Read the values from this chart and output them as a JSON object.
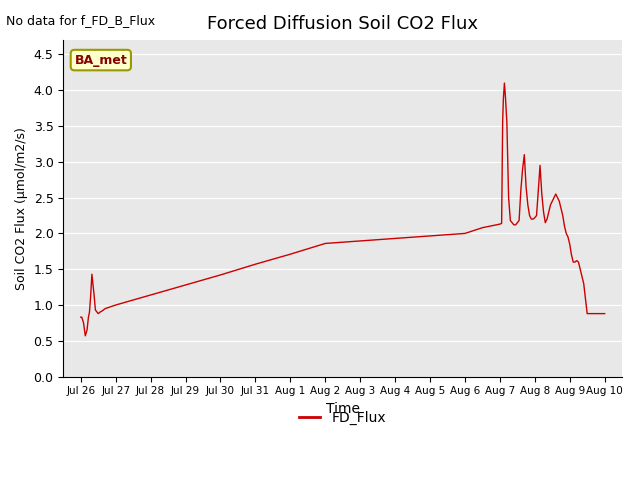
{
  "title": "Forced Diffusion Soil CO2 Flux",
  "top_left_text": "No data for f_FD_B_Flux",
  "xlabel": "Time",
  "ylabel": "Soil CO2 Flux (μmol/m2/s)",
  "ylim": [
    0.0,
    4.7
  ],
  "yticks": [
    0.0,
    0.5,
    1.0,
    1.5,
    2.0,
    2.5,
    3.0,
    3.5,
    4.0,
    4.5
  ],
  "line_color": "#cc0000",
  "line_label": "FD_Flux",
  "legend_anchor_label": "BA_met",
  "background_color": "#e8e8e8",
  "xtick_labels": [
    "Jul 26",
    "Jul 27",
    "Jul 28",
    "Jul 29",
    "Jul 30",
    "Jul 31",
    "Aug 1",
    "Aug 2",
    "Aug 3",
    "Aug 4",
    "Aug 5",
    "Aug 6",
    "Aug 7",
    "Aug 8",
    "Aug 9",
    "Aug 10"
  ],
  "x_pts": [
    0.0,
    0.03,
    0.08,
    0.13,
    0.18,
    0.22,
    0.25,
    0.28,
    0.32,
    0.38,
    0.42,
    0.5,
    0.55,
    0.62,
    0.7,
    1.0,
    2.0,
    3.0,
    4.0,
    5.0,
    6.0,
    7.0,
    11.0,
    11.5,
    12.0,
    12.05,
    12.08,
    12.1,
    12.13,
    12.16,
    12.2,
    12.25,
    12.3,
    12.35,
    12.4,
    12.45,
    12.5,
    12.55,
    12.6,
    12.65,
    12.7,
    12.75,
    12.8,
    12.85,
    12.9,
    12.95,
    13.0,
    13.05,
    13.1,
    13.15,
    13.2,
    13.25,
    13.3,
    13.35,
    13.4,
    13.45,
    13.5,
    13.55,
    13.6,
    13.65,
    13.7,
    13.75,
    13.8,
    13.85,
    13.9,
    13.95,
    14.0,
    14.05,
    14.1,
    14.15,
    14.2,
    14.25,
    14.3,
    14.4,
    14.5,
    14.7,
    14.9,
    15.0
  ],
  "y_pts": [
    0.83,
    0.83,
    0.75,
    0.57,
    0.65,
    0.83,
    0.9,
    1.1,
    1.43,
    1.15,
    0.93,
    0.88,
    0.9,
    0.92,
    0.95,
    1.0,
    1.14,
    1.28,
    1.42,
    1.57,
    1.71,
    1.86,
    2.0,
    2.08,
    2.13,
    2.14,
    3.57,
    3.88,
    4.1,
    3.9,
    3.55,
    2.5,
    2.18,
    2.15,
    2.12,
    2.12,
    2.15,
    2.18,
    2.6,
    2.9,
    3.1,
    2.65,
    2.4,
    2.25,
    2.2,
    2.2,
    2.22,
    2.25,
    2.6,
    2.95,
    2.55,
    2.3,
    2.15,
    2.2,
    2.3,
    2.4,
    2.45,
    2.5,
    2.55,
    2.5,
    2.45,
    2.35,
    2.25,
    2.1,
    2.0,
    1.95,
    1.85,
    1.7,
    1.6,
    1.6,
    1.62,
    1.6,
    1.5,
    1.3,
    0.88,
    0.88,
    0.88,
    0.88
  ]
}
